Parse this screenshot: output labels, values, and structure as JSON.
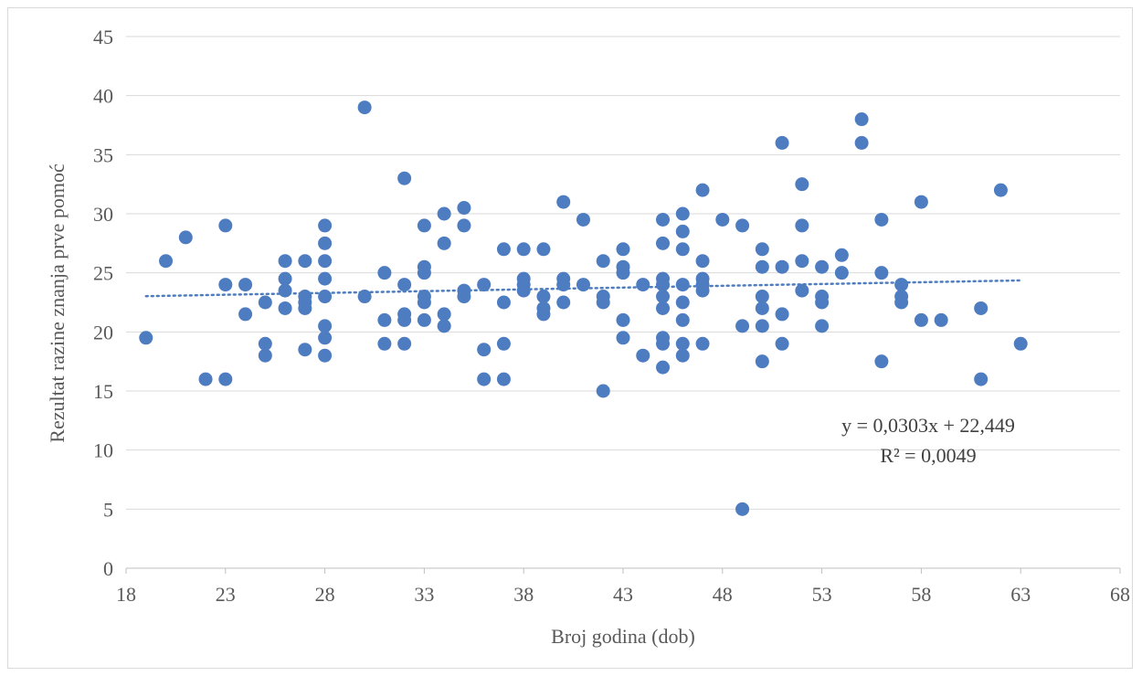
{
  "chart_data": {
    "type": "scatter",
    "title": "",
    "xlabel": "Broj godina (dob)",
    "ylabel": "Rezultat razine znanja prve pomoć",
    "xlim": [
      18,
      68
    ],
    "ylim": [
      0,
      45
    ],
    "xticks": [
      18,
      23,
      28,
      33,
      38,
      43,
      48,
      53,
      58,
      63,
      68
    ],
    "yticks": [
      0,
      5,
      10,
      15,
      20,
      25,
      30,
      35,
      40,
      45
    ],
    "grid": "horizontal",
    "marker_color": "#4e7cc1",
    "trendline": {
      "type": "linear",
      "slope": 0.0303,
      "intercept": 22.449,
      "x_range": [
        19,
        63
      ],
      "color": "#4e7cc1",
      "equation": "y = 0,0303x + 22,449",
      "r_squared": "R² = 0,0049"
    },
    "points": [
      [
        19,
        19.5
      ],
      [
        20,
        26
      ],
      [
        21,
        28
      ],
      [
        22,
        16
      ],
      [
        23,
        29
      ],
      [
        23,
        24
      ],
      [
        23,
        16
      ],
      [
        24,
        24
      ],
      [
        24,
        21.5
      ],
      [
        25,
        22.5
      ],
      [
        25,
        19
      ],
      [
        25,
        18
      ],
      [
        26,
        26
      ],
      [
        26,
        24.5
      ],
      [
        26,
        23.5
      ],
      [
        26,
        22
      ],
      [
        27,
        26
      ],
      [
        27,
        23
      ],
      [
        27,
        22.5
      ],
      [
        27,
        22
      ],
      [
        27,
        18.5
      ],
      [
        28,
        29
      ],
      [
        28,
        27.5
      ],
      [
        28,
        26
      ],
      [
        28,
        24.5
      ],
      [
        28,
        23
      ],
      [
        28,
        20.5
      ],
      [
        28,
        19.5
      ],
      [
        28,
        18
      ],
      [
        30,
        39
      ],
      [
        30,
        23
      ],
      [
        31,
        25
      ],
      [
        31,
        21
      ],
      [
        31,
        19
      ],
      [
        32,
        33
      ],
      [
        32,
        24
      ],
      [
        32,
        21.5
      ],
      [
        32,
        21
      ],
      [
        32,
        19
      ],
      [
        33,
        29
      ],
      [
        33,
        25.5
      ],
      [
        33,
        25
      ],
      [
        33,
        23
      ],
      [
        33,
        22.5
      ],
      [
        33,
        21
      ],
      [
        34,
        30
      ],
      [
        34,
        27.5
      ],
      [
        34,
        21.5
      ],
      [
        34,
        20.5
      ],
      [
        35,
        30.5
      ],
      [
        35,
        29
      ],
      [
        35,
        23.5
      ],
      [
        35,
        23
      ],
      [
        36,
        24
      ],
      [
        36,
        18.5
      ],
      [
        36,
        16
      ],
      [
        37,
        27
      ],
      [
        37,
        22.5
      ],
      [
        37,
        19
      ],
      [
        37,
        16
      ],
      [
        38,
        27
      ],
      [
        38,
        24.5
      ],
      [
        38,
        24
      ],
      [
        38,
        23.5
      ],
      [
        39,
        27
      ],
      [
        39,
        23
      ],
      [
        39,
        22
      ],
      [
        39,
        21.5
      ],
      [
        40,
        31
      ],
      [
        40,
        24.5
      ],
      [
        40,
        24
      ],
      [
        40,
        22.5
      ],
      [
        41,
        29.5
      ],
      [
        41,
        24
      ],
      [
        42,
        26
      ],
      [
        42,
        23
      ],
      [
        42,
        22.5
      ],
      [
        42,
        15
      ],
      [
        43,
        27
      ],
      [
        43,
        25.5
      ],
      [
        43,
        25
      ],
      [
        43,
        21
      ],
      [
        43,
        19.5
      ],
      [
        44,
        24
      ],
      [
        44,
        18
      ],
      [
        45,
        29.5
      ],
      [
        45,
        27.5
      ],
      [
        45,
        24.5
      ],
      [
        45,
        24
      ],
      [
        45,
        23
      ],
      [
        45,
        22
      ],
      [
        45,
        19.5
      ],
      [
        45,
        19
      ],
      [
        45,
        17
      ],
      [
        46,
        30
      ],
      [
        46,
        28.5
      ],
      [
        46,
        27
      ],
      [
        46,
        24
      ],
      [
        46,
        22.5
      ],
      [
        46,
        21
      ],
      [
        46,
        19
      ],
      [
        46,
        18
      ],
      [
        47,
        32
      ],
      [
        47,
        26
      ],
      [
        47,
        24.5
      ],
      [
        47,
        24
      ],
      [
        47,
        23.5
      ],
      [
        47,
        19
      ],
      [
        48,
        29.5
      ],
      [
        49,
        29
      ],
      [
        49,
        20.5
      ],
      [
        49,
        5
      ],
      [
        50,
        27
      ],
      [
        50,
        25.5
      ],
      [
        50,
        23
      ],
      [
        50,
        22
      ],
      [
        50,
        20.5
      ],
      [
        50,
        17.5
      ],
      [
        51,
        36
      ],
      [
        51,
        25.5
      ],
      [
        51,
        21.5
      ],
      [
        51,
        19
      ],
      [
        52,
        32.5
      ],
      [
        52,
        29
      ],
      [
        52,
        26
      ],
      [
        52,
        23.5
      ],
      [
        53,
        25.5
      ],
      [
        53,
        23
      ],
      [
        53,
        22.5
      ],
      [
        53,
        20.5
      ],
      [
        54,
        26.5
      ],
      [
        54,
        25
      ],
      [
        55,
        38
      ],
      [
        55,
        36
      ],
      [
        56,
        29.5
      ],
      [
        56,
        25
      ],
      [
        56,
        17.5
      ],
      [
        57,
        24
      ],
      [
        57,
        23
      ],
      [
        57,
        22.5
      ],
      [
        58,
        31
      ],
      [
        58,
        21
      ],
      [
        59,
        21
      ],
      [
        61,
        22
      ],
      [
        61,
        16
      ],
      [
        62,
        32
      ],
      [
        63,
        19
      ]
    ]
  }
}
